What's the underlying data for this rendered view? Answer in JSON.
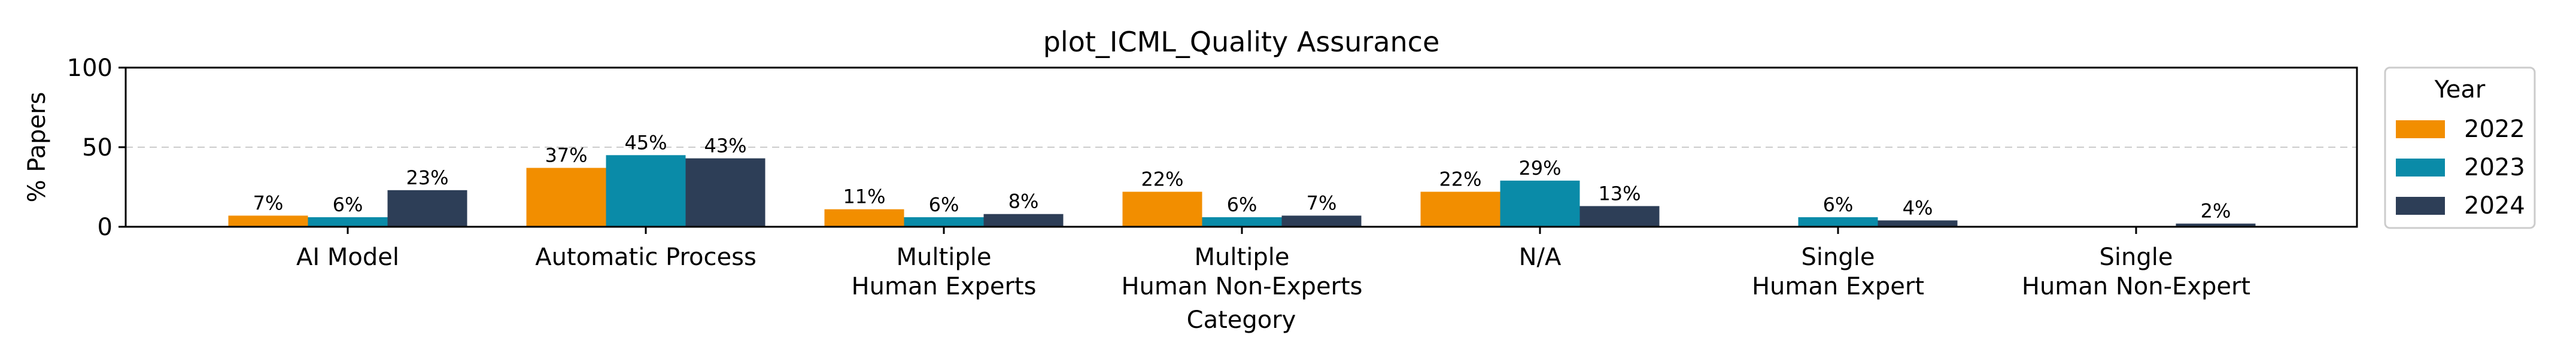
{
  "chart_data": {
    "type": "bar",
    "title": "plot_ICML_Quality Assurance",
    "xlabel": "Category",
    "ylabel": "% Papers",
    "ylim": [
      0,
      100
    ],
    "yticks": [
      "0",
      "50",
      "100"
    ],
    "grid": "horizontal dashed at 50",
    "categories": [
      [
        "AI Model"
      ],
      [
        "Automatic Process"
      ],
      [
        "Multiple",
        "Human Experts"
      ],
      [
        "Multiple",
        "Human Non-Experts"
      ],
      [
        "N/A"
      ],
      [
        "Single",
        "Human Expert"
      ],
      [
        "Single",
        "Human Non-Expert"
      ]
    ],
    "series": [
      {
        "name": "2022",
        "color": "#F28E00",
        "values": [
          7,
          37,
          11,
          22,
          22,
          0,
          0
        ],
        "labels": [
          "7%",
          "37%",
          "11%",
          "22%",
          "22%",
          "",
          ""
        ]
      },
      {
        "name": "2023",
        "color": "#0A8BA8",
        "values": [
          6,
          45,
          6,
          6,
          29,
          6,
          0
        ],
        "labels": [
          "6%",
          "45%",
          "6%",
          "6%",
          "29%",
          "6%",
          ""
        ]
      },
      {
        "name": "2024",
        "color": "#2D3E57",
        "values": [
          23,
          43,
          8,
          7,
          13,
          4,
          2
        ],
        "labels": [
          "23%",
          "43%",
          "8%",
          "7%",
          "13%",
          "4%",
          "2%"
        ]
      }
    ],
    "legend": {
      "title": "Year",
      "placement": "outside-right"
    }
  }
}
